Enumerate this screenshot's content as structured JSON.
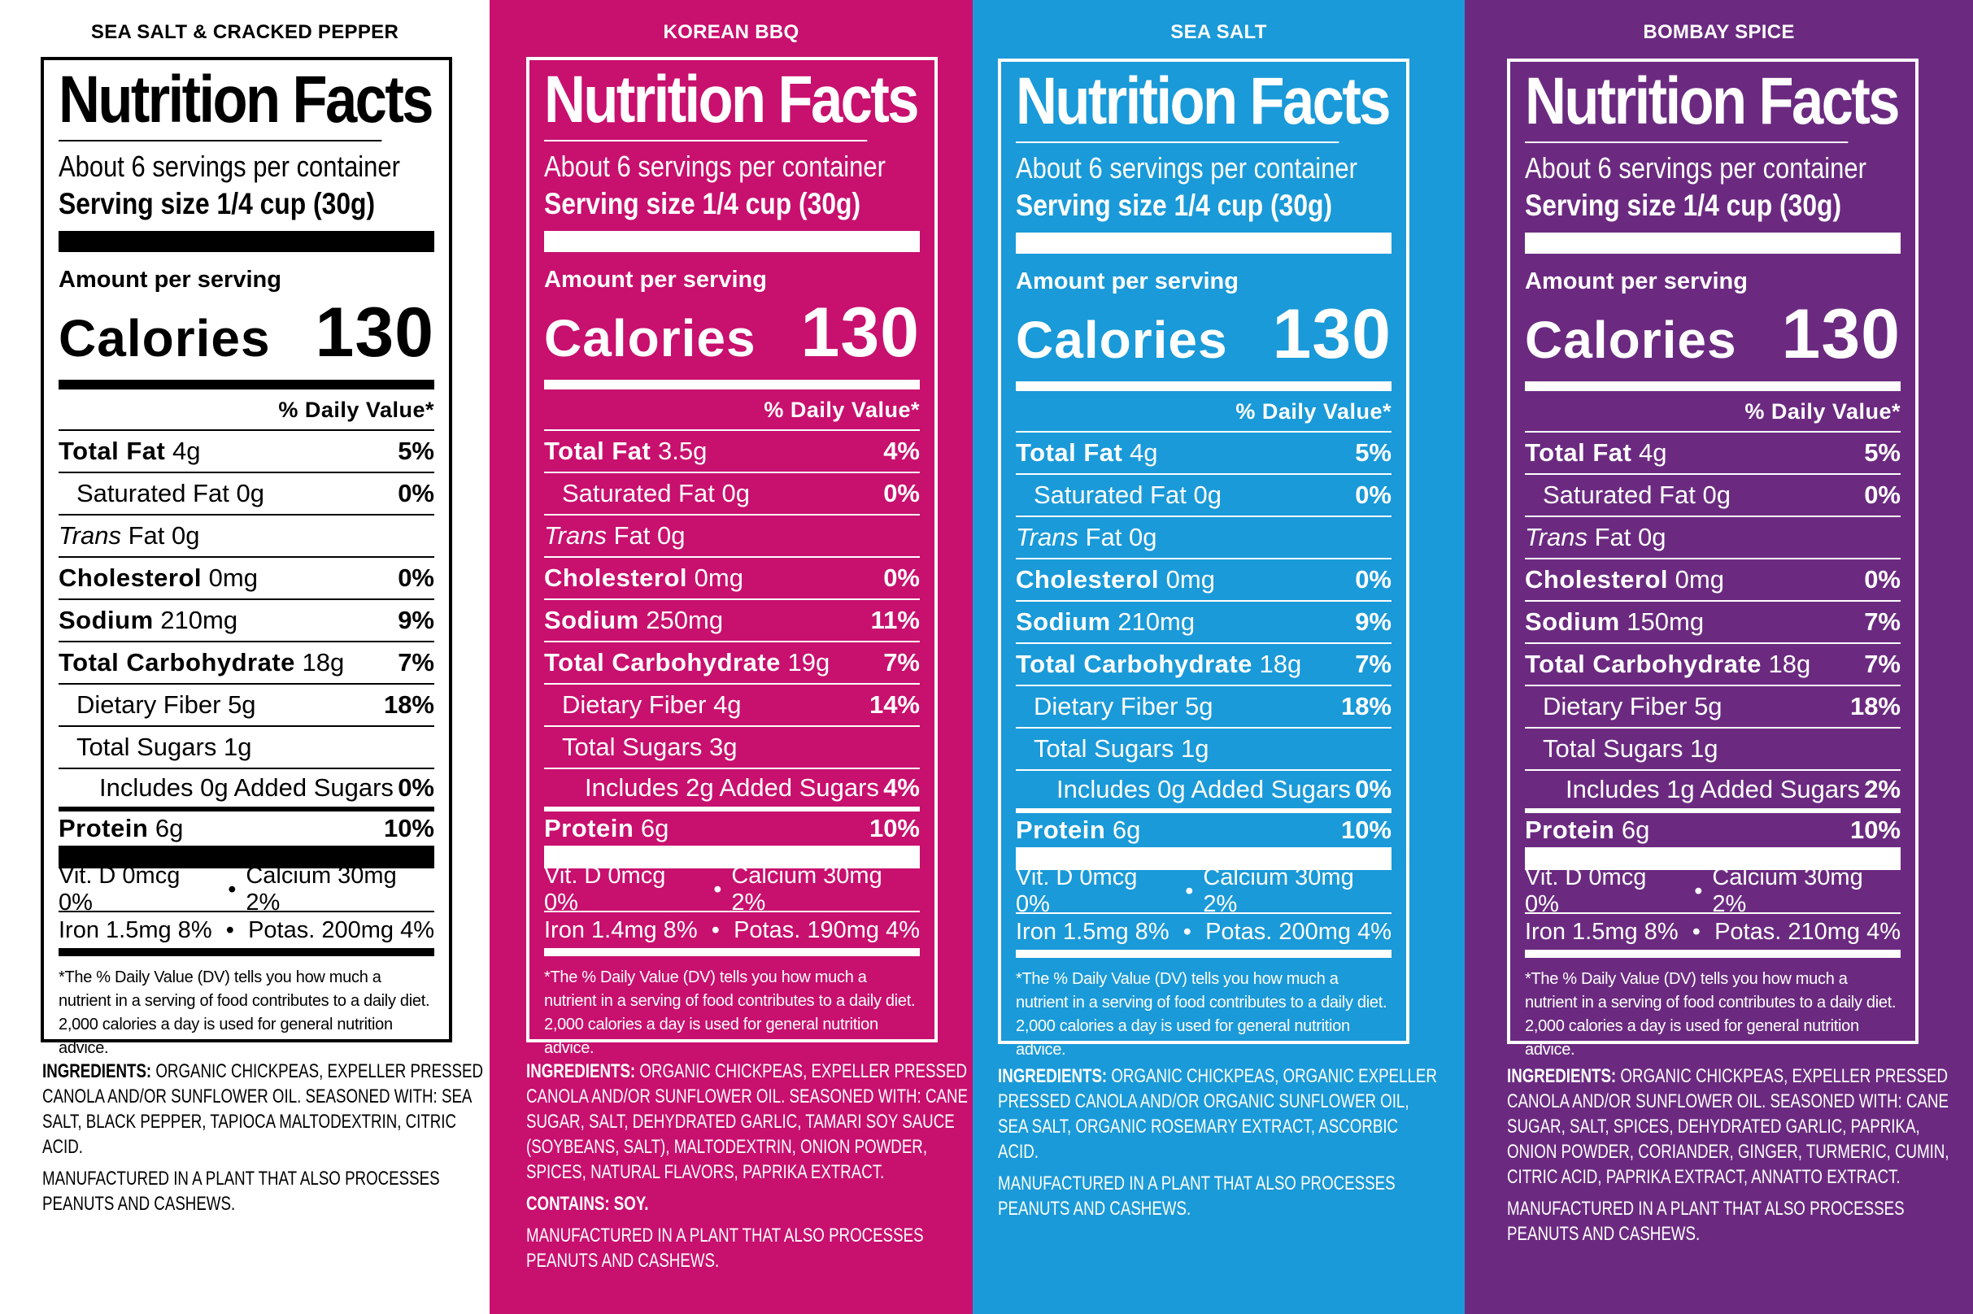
{
  "panels": [
    {
      "flavor": "SEA SALT & CRACKED PEPPER",
      "bg": "#ffffff",
      "fg": "#000000",
      "title": "Nutrition Facts",
      "servings": "About 6 servings per container",
      "serving_size": "Serving size 1/4 cup (30g)",
      "amount": "Amount per serving",
      "calories_label": "Calories",
      "calories_value": "130",
      "dv_header": "% Daily Value*",
      "rows": [
        {
          "name": "Total Fat",
          "amt": "4g",
          "pct": "5%"
        },
        {
          "name": "Saturated Fat",
          "amt": "0g",
          "pct": "0%"
        },
        {
          "name": "Trans",
          "amt": "Fat 0g",
          "pct": ""
        },
        {
          "name": "Cholesterol",
          "amt": "0mg",
          "pct": "0%"
        },
        {
          "name": "Sodium",
          "amt": "210mg",
          "pct": "9%"
        },
        {
          "name": "Total Carbohydrate",
          "amt": "18g",
          "pct": "7%"
        },
        {
          "name": "Dietary Fiber",
          "amt": "5g",
          "pct": "18%"
        },
        {
          "name": "Total Sugars",
          "amt": "1g",
          "pct": ""
        },
        {
          "name": "Includes 0g Added Sugars",
          "amt": "",
          "pct": "0%"
        },
        {
          "name": "Protein",
          "amt": "6g",
          "pct": "10%"
        }
      ],
      "vit_d": "Vit. D 0mcg 0%",
      "calcium": "Calcium 30mg 2%",
      "iron": "Iron 1.5mg 8%",
      "potas": "Potas. 200mg 4%",
      "bullet": "•",
      "footnote": "*The % Daily Value (DV) tells you how much a nutrient in a serving of food contributes to a daily diet. 2,000 calories a day is used for general nutrition advice.",
      "ingredients_head": "INGREDIENTS:",
      "ingredients": "ORGANIC CHICKPEAS, EXPELLER PRESSED CANOLA AND/OR SUNFLOWER OIL. SEASONED WITH: SEA SALT, BLACK PEPPER, TAPIOCA MALTODEXTRIN, CITRIC ACID.",
      "contains": "",
      "manufactured": "MANUFACTURED IN A PLANT THAT ALSO PROCESSES PEANUTS AND CASHEWS."
    },
    {
      "flavor": "KOREAN BBQ",
      "bg": "#c8106e",
      "fg": "#ffffff",
      "title": "Nutrition Facts",
      "servings": "About 6 servings per container",
      "serving_size": "Serving size 1/4 cup (30g)",
      "amount": "Amount per serving",
      "calories_label": "Calories",
      "calories_value": "130",
      "dv_header": "% Daily Value*",
      "rows": [
        {
          "name": "Total Fat",
          "amt": "3.5g",
          "pct": "4%"
        },
        {
          "name": "Saturated Fat",
          "amt": "0g",
          "pct": "0%"
        },
        {
          "name": "Trans",
          "amt": "Fat 0g",
          "pct": ""
        },
        {
          "name": "Cholesterol",
          "amt": "0mg",
          "pct": "0%"
        },
        {
          "name": "Sodium",
          "amt": "250mg",
          "pct": "11%"
        },
        {
          "name": "Total Carbohydrate",
          "amt": "19g",
          "pct": "7%"
        },
        {
          "name": "Dietary Fiber",
          "amt": "4g",
          "pct": "14%"
        },
        {
          "name": "Total Sugars",
          "amt": "3g",
          "pct": ""
        },
        {
          "name": "Includes 2g Added Sugars",
          "amt": "",
          "pct": "4%"
        },
        {
          "name": "Protein",
          "amt": "6g",
          "pct": "10%"
        }
      ],
      "vit_d": "Vit. D 0mcg 0%",
      "calcium": "Calcium 30mg 2%",
      "iron": "Iron 1.4mg 8%",
      "potas": "Potas. 190mg 4%",
      "bullet": "•",
      "footnote": "*The % Daily Value (DV) tells you how much a nutrient in a serving of food contributes to a daily diet. 2,000 calories a day is used for general nutrition advice.",
      "ingredients_head": "INGREDIENTS:",
      "ingredients": "ORGANIC CHICKPEAS, EXPELLER PRESSED CANOLA AND/OR SUNFLOWER OIL. SEASONED WITH: CANE SUGAR, SALT, DEHYDRATED GARLIC, TAMARI SOY SAUCE (SOYBEANS, SALT), MALTODEXTRIN, ONION POWDER, SPICES, NATURAL FLAVORS, PAPRIKA EXTRACT.",
      "contains": "CONTAINS: SOY.",
      "manufactured": "MANUFACTURED IN A PLANT THAT ALSO PROCESSES PEANUTS AND CASHEWS."
    },
    {
      "flavor": "SEA SALT",
      "bg": "#1a9ad8",
      "fg": "#ffffff",
      "title": "Nutrition Facts",
      "servings": "About 6 servings per container",
      "serving_size": "Serving size 1/4 cup (30g)",
      "amount": "Amount per serving",
      "calories_label": "Calories",
      "calories_value": "130",
      "dv_header": "% Daily Value*",
      "rows": [
        {
          "name": "Total Fat",
          "amt": "4g",
          "pct": "5%"
        },
        {
          "name": "Saturated Fat",
          "amt": "0g",
          "pct": "0%"
        },
        {
          "name": "Trans",
          "amt": "Fat 0g",
          "pct": ""
        },
        {
          "name": "Cholesterol",
          "amt": "0mg",
          "pct": "0%"
        },
        {
          "name": "Sodium",
          "amt": "210mg",
          "pct": "9%"
        },
        {
          "name": "Total Carbohydrate",
          "amt": "18g",
          "pct": "7%"
        },
        {
          "name": "Dietary Fiber",
          "amt": "5g",
          "pct": "18%"
        },
        {
          "name": "Total Sugars",
          "amt": "1g",
          "pct": ""
        },
        {
          "name": "Includes 0g Added Sugars",
          "amt": "",
          "pct": "0%"
        },
        {
          "name": "Protein",
          "amt": "6g",
          "pct": "10%"
        }
      ],
      "vit_d": "Vit. D 0mcg 0%",
      "calcium": "Calcium 30mg 2%",
      "iron": "Iron 1.5mg 8%",
      "potas": "Potas. 200mg 4%",
      "bullet": "•",
      "footnote": "*The % Daily Value (DV) tells you how much a nutrient in a serving of food contributes to a daily diet. 2,000 calories a day is used for general nutrition advice.",
      "ingredients_head": "INGREDIENTS:",
      "ingredients": "ORGANIC CHICKPEAS, ORGANIC EXPELLER PRESSED CANOLA AND/OR ORGANIC SUNFLOWER OIL, SEA SALT, ORGANIC ROSEMARY EXTRACT, ASCORBIC ACID.",
      "contains": "",
      "manufactured": "MANUFACTURED IN A PLANT THAT ALSO PROCESSES PEANUTS AND CASHEWS."
    },
    {
      "flavor": "BOMBAY SPICE",
      "bg": "#6b2a80",
      "fg": "#ffffff",
      "title": "Nutrition Facts",
      "servings": "About 6 servings per container",
      "serving_size": "Serving size 1/4 cup (30g)",
      "amount": "Amount per serving",
      "calories_label": "Calories",
      "calories_value": "130",
      "dv_header": "% Daily Value*",
      "rows": [
        {
          "name": "Total Fat",
          "amt": "4g",
          "pct": "5%"
        },
        {
          "name": "Saturated Fat",
          "amt": "0g",
          "pct": "0%"
        },
        {
          "name": "Trans",
          "amt": "Fat 0g",
          "pct": ""
        },
        {
          "name": "Cholesterol",
          "amt": "0mg",
          "pct": "0%"
        },
        {
          "name": "Sodium",
          "amt": "150mg",
          "pct": "7%"
        },
        {
          "name": "Total Carbohydrate",
          "amt": "18g",
          "pct": "7%"
        },
        {
          "name": "Dietary Fiber",
          "amt": "5g",
          "pct": "18%"
        },
        {
          "name": "Total Sugars",
          "amt": "1g",
          "pct": ""
        },
        {
          "name": "Includes 1g Added Sugars",
          "amt": "",
          "pct": "2%"
        },
        {
          "name": "Protein",
          "amt": "6g",
          "pct": "10%"
        }
      ],
      "vit_d": "Vit. D 0mcg 0%",
      "calcium": "Calcium 30mg 2%",
      "iron": "Iron 1.5mg 8%",
      "potas": "Potas. 210mg 4%",
      "bullet": "•",
      "footnote": "*The % Daily Value (DV) tells you how much a nutrient in a serving of food contributes to a daily diet. 2,000 calories a day is used for general nutrition advice.",
      "ingredients_head": "INGREDIENTS:",
      "ingredients": "ORGANIC CHICKPEAS, EXPELLER PRESSED CANOLA AND/OR SUNFLOWER OIL. SEASONED WITH: CANE SUGAR, SALT, SPICES, DEHYDRATED GARLIC, PAPRIKA, ONION POWDER, CORIANDER, GINGER, TURMERIC, CUMIN, CITRIC ACID, PAPRIKA EXTRACT, ANNATTO EXTRACT.",
      "contains": "",
      "manufactured": "MANUFACTURED IN A PLANT THAT ALSO PROCESSES PEANUTS AND CASHEWS."
    }
  ]
}
